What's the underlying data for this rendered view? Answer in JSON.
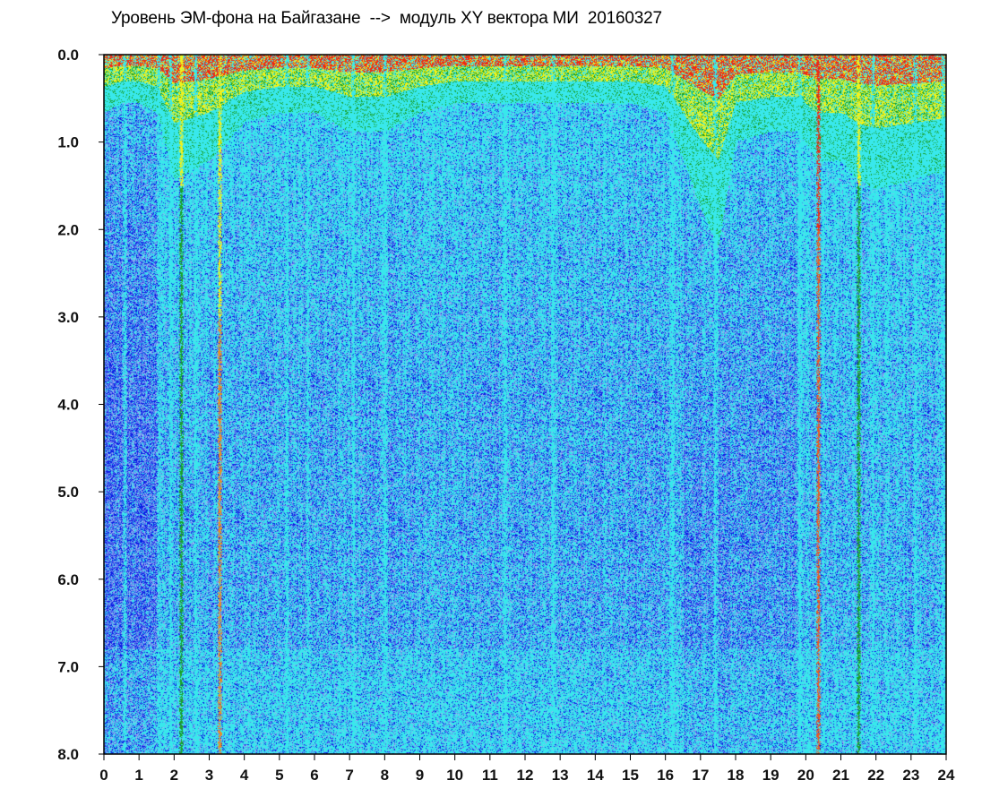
{
  "chart_data": {
    "type": "heatmap",
    "title": "Уровень ЭМ-фона на Байгазане  -->  модуль XY вектора МИ  20160327",
    "xlabel": "",
    "ylabel": "",
    "xlim": [
      0,
      24
    ],
    "ylim": [
      0,
      8
    ],
    "y_inverted": true,
    "x_ticks": [
      "0",
      "1",
      "2",
      "3",
      "4",
      "5",
      "6",
      "7",
      "8",
      "9",
      "10",
      "11",
      "12",
      "13",
      "14",
      "15",
      "16",
      "17",
      "18",
      "19",
      "20",
      "21",
      "22",
      "23",
      "24"
    ],
    "y_ticks": [
      "0.0",
      "1.0",
      "2.0",
      "3.0",
      "4.0",
      "5.0",
      "6.0",
      "7.0",
      "8.0"
    ],
    "grid": false,
    "colorscale": [
      "#0a1be6",
      "#5a78ee",
      "#9eb1f2",
      "#38e8ec",
      "#1aa22a",
      "#f2f21a",
      "#ee2a14"
    ],
    "background_color": "#3fd6ee",
    "top_band_depth_by_hour": {
      "x": [
        0,
        0.5,
        1,
        1.5,
        2,
        2.5,
        3,
        3.5,
        4,
        5,
        6,
        7,
        8,
        9,
        10,
        11,
        12,
        13,
        14,
        15,
        16,
        16.5,
        17,
        17.5,
        18,
        19,
        19.8,
        20.3,
        21,
        21.5,
        22,
        23,
        24
      ],
      "depth": [
        0.6,
        0.5,
        0.5,
        0.6,
        1.3,
        1.2,
        1.1,
        0.9,
        0.7,
        0.6,
        0.6,
        0.8,
        0.8,
        0.6,
        0.5,
        0.5,
        0.5,
        0.5,
        0.5,
        0.5,
        0.6,
        1.1,
        1.6,
        2.0,
        0.9,
        0.8,
        0.8,
        1.1,
        1.1,
        1.3,
        1.4,
        1.3,
        1.2
      ]
    },
    "vertical_streaks": [
      {
        "x": 0.6,
        "kind": "cyan"
      },
      {
        "x": 1.55,
        "kind": "cyan"
      },
      {
        "x": 1.9,
        "kind": "cyan"
      },
      {
        "x": 2.2,
        "kind": "green"
      },
      {
        "x": 2.6,
        "kind": "cyan"
      },
      {
        "x": 3.3,
        "kind": "orange"
      },
      {
        "x": 5.2,
        "kind": "cyan"
      },
      {
        "x": 5.8,
        "kind": "cyan"
      },
      {
        "x": 7.1,
        "kind": "cyan"
      },
      {
        "x": 8.0,
        "kind": "cyan"
      },
      {
        "x": 11.4,
        "kind": "cyan"
      },
      {
        "x": 12.8,
        "kind": "cyan"
      },
      {
        "x": 16.2,
        "kind": "cyan"
      },
      {
        "x": 17.4,
        "kind": "cyan"
      },
      {
        "x": 19.8,
        "kind": "cyan"
      },
      {
        "x": 20.35,
        "kind": "red"
      },
      {
        "x": 21.5,
        "kind": "green"
      },
      {
        "x": 21.9,
        "kind": "cyan"
      },
      {
        "x": 23.1,
        "kind": "cyan"
      },
      {
        "x": 23.9,
        "kind": "cyan"
      }
    ]
  }
}
